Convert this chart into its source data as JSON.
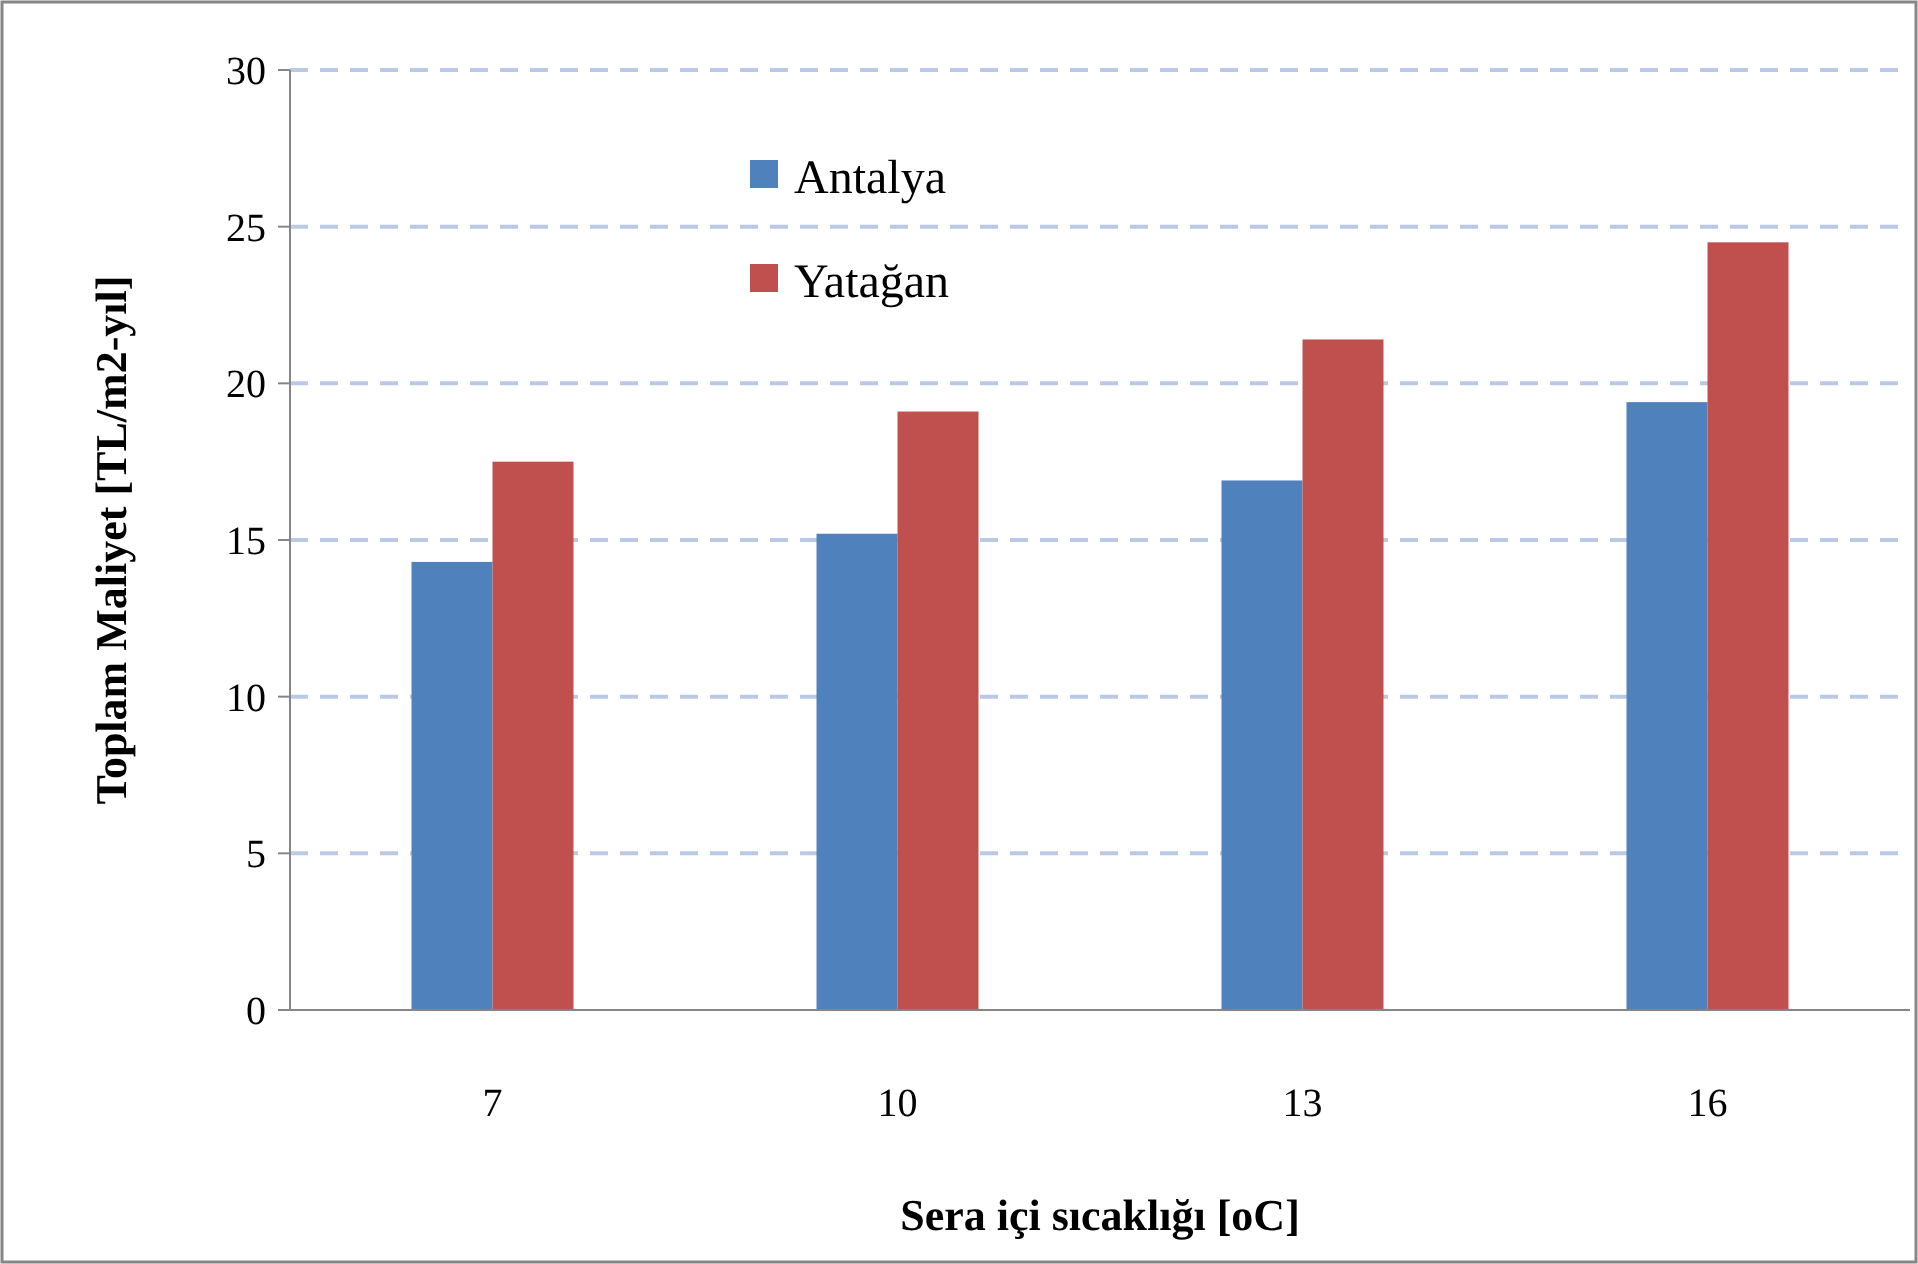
{
  "chart_data": {
    "type": "bar",
    "categories": [
      "7",
      "10",
      "13",
      "16"
    ],
    "series": [
      {
        "name": "Antalya",
        "color": "#4f81bd",
        "values": [
          14.3,
          15.2,
          16.9,
          19.4
        ]
      },
      {
        "name": "Yatağan",
        "color": "#c0504d",
        "values": [
          17.5,
          19.1,
          21.4,
          24.5
        ]
      }
    ],
    "xlabel": "Sera içi sıcaklığı [oC]",
    "ylabel": "Toplam Maliyet [TL/m2-yıl]",
    "ylim": [
      0,
      30
    ],
    "yticks": [
      0,
      5,
      10,
      15,
      20,
      25,
      30
    ],
    "grid": "y",
    "legend": "top left"
  }
}
